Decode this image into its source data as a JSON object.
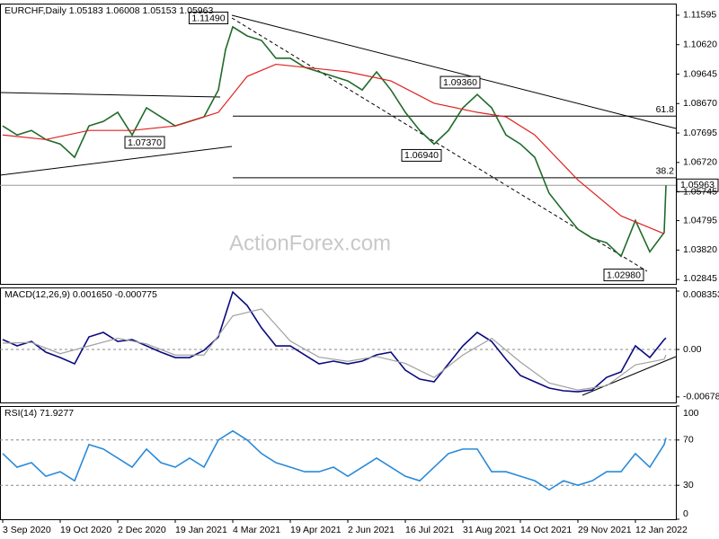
{
  "chart_data": [
    {
      "type": "line",
      "title": "EURCHF,Daily  1.05183 1.06008 1.05153 1.05963",
      "watermark": "ActionForex.com",
      "xlim": [
        -1.5,
        374.5
      ],
      "ylim": [
        1.027,
        1.1198
      ],
      "yticks": [
        1.11595,
        {
          "value": 1.1062,
          "label": "1.10620"
        },
        1.09645,
        {
          "value": 1.0867,
          "label": "1.08670"
        },
        1.07695,
        {
          "value": 1.0672,
          "label": "1.06720"
        },
        1.05745,
        1.04795,
        {
          "value": 1.0382,
          "label": "1.03820"
        },
        1.02845
      ],
      "last_marker": true,
      "series": [
        {
          "color": "#1f6b2a",
          "x": [
            0,
            8,
            16,
            24,
            32,
            40,
            48,
            56,
            64,
            72,
            80,
            88,
            96,
            104,
            112,
            120,
            124,
            128,
            136,
            144,
            152,
            160,
            168,
            176,
            184,
            192,
            200,
            208,
            216,
            224,
            232,
            240,
            248,
            256,
            264,
            272,
            280,
            288,
            296,
            304,
            312,
            320,
            328,
            336,
            344,
            352,
            360,
            368,
            369
          ],
          "values": [
            1.0793,
            1.0763,
            1.0778,
            1.0748,
            1.0733,
            1.0689,
            1.0793,
            1.0808,
            1.0838,
            1.0763,
            1.0853,
            1.0823,
            1.0793,
            1.0808,
            1.0823,
            1.0912,
            1.1046,
            1.1121,
            1.1091,
            1.1076,
            1.1017,
            1.1017,
            1.0987,
            1.0972,
            1.0957,
            1.0942,
            1.0912,
            1.0972,
            1.0912,
            1.0838,
            1.0778,
            1.0733,
            1.0778,
            1.0853,
            1.0897,
            1.0853,
            1.0763,
            1.0733,
            1.0689,
            1.057,
            1.051,
            1.0451,
            1.0421,
            1.0406,
            1.0361,
            1.048,
            1.0376,
            1.044,
            1.05963
          ]
        },
        {
          "color": "#e02020",
          "x": [
            0,
            24,
            48,
            72,
            96,
            120,
            136,
            152,
            168,
            192,
            216,
            240,
            264,
            280,
            296,
            320,
            344,
            368
          ],
          "values": [
            1.0763,
            1.0748,
            1.0778,
            1.0778,
            1.0793,
            1.0838,
            1.0957,
            1.0997,
            1.0987,
            1.0972,
            1.0942,
            1.0868,
            1.0838,
            1.0823,
            1.0763,
            1.0614,
            1.0495,
            1.0436
          ]
        }
      ],
      "levels": [
        {
          "label": "61.8",
          "value": 1.08253,
          "x": 128
        },
        {
          "label": "38.2",
          "value": 1.06213,
          "x": 128
        }
      ],
      "annotations": [
        {
          "label": "1.11490",
          "value": 1.1149,
          "x": 114.5
        },
        {
          "label": "1.07370",
          "value": 1.0737,
          "x": 79
        },
        {
          "label": "1.06940",
          "value": 1.0694,
          "x": 233
        },
        {
          "label": "1.09360",
          "value": 1.0936,
          "x": 254.5
        },
        {
          "label": "1.02980",
          "value": 1.0298,
          "x": 345.5
        }
      ]
    },
    {
      "type": "line",
      "title": "MACD(12,26,9) 0.001650 -0.000775",
      "xlim": [
        -1.5,
        374.5
      ],
      "ylim": [
        -0.00758,
        0.00887
      ],
      "yticks": [
        0.008353,
        {
          "value": 0,
          "label": "0.00"
        },
        -0.006788
      ],
      "levels": [
        0
      ],
      "series": [
        {
          "color": "#0a0a80",
          "x": [
            0,
            8,
            16,
            24,
            32,
            40,
            48,
            56,
            64,
            72,
            80,
            88,
            96,
            104,
            112,
            120,
            128,
            136,
            144,
            152,
            160,
            168,
            176,
            184,
            192,
            200,
            208,
            216,
            224,
            232,
            240,
            248,
            256,
            264,
            272,
            280,
            288,
            296,
            304,
            312,
            320,
            328,
            336,
            344,
            352,
            360,
            368,
            369
          ],
          "values": [
            0.001414,
            0.000514,
            0.001157,
            -0.000386,
            -0.001157,
            -0.002056,
            0.001799,
            0.002442,
            0.001157,
            0.001414,
            0.000514,
            -0.000386,
            -0.001157,
            -0.001157,
            -0.000129,
            0.001799,
            0.008224,
            0.006297,
            0.003084,
            0.000514,
            0.000514,
            -0.000771,
            -0.002056,
            -0.001671,
            -0.002056,
            -0.001671,
            -0.000771,
            -0.000386,
            -0.002956,
            -0.004241,
            -0.004626,
            -0.002056,
            0.000514,
            0.002442,
            0.001157,
            -0.001414,
            -0.003727,
            -0.004626,
            -0.005526,
            -0.005911,
            -0.00604,
            -0.005783,
            -0.003984,
            -0.003213,
            0.000514,
            -0.001157,
            0.001414,
            0.00165
          ]
        },
        {
          "color": "#a0a0a0",
          "x": [
            0,
            16,
            32,
            48,
            64,
            80,
            96,
            112,
            128,
            144,
            160,
            176,
            192,
            208,
            224,
            240,
            256,
            272,
            288,
            304,
            320,
            336,
            352,
            368,
            369
          ],
          "values": [
            0.0009,
            0.001,
            -0.0006,
            0.0005,
            0.0016,
            0.0008,
            -0.0008,
            -0.0008,
            0.0048,
            0.0058,
            0.0012,
            -0.0011,
            -0.0017,
            -0.001,
            -0.002,
            -0.004,
            -0.0008,
            0.0016,
            -0.0018,
            -0.0048,
            -0.0058,
            -0.0052,
            -0.0022,
            -0.0014,
            -0.000775
          ]
        }
      ]
    },
    {
      "type": "line",
      "title": "RSI(14) 71.9277",
      "xlim": [
        -1.5,
        374.5
      ],
      "ylim": [
        0,
        100
      ],
      "yticks": [
        100,
        70,
        30,
        0
      ],
      "levels": [
        70,
        30
      ],
      "series": [
        {
          "color": "#2a8ad8",
          "x": [
            0,
            8,
            16,
            24,
            32,
            40,
            48,
            56,
            64,
            72,
            80,
            88,
            96,
            104,
            112,
            120,
            128,
            136,
            144,
            152,
            160,
            168,
            176,
            184,
            192,
            200,
            208,
            216,
            224,
            232,
            240,
            248,
            256,
            264,
            272,
            280,
            288,
            296,
            304,
            312,
            320,
            328,
            336,
            344,
            352,
            360,
            368,
            369
          ],
          "values": [
            58,
            46,
            50,
            38,
            42,
            34,
            66,
            62,
            54,
            46,
            62,
            50,
            46,
            54,
            46,
            70,
            78,
            70,
            58,
            50,
            46,
            42,
            42,
            46,
            38,
            46,
            54,
            46,
            38,
            34,
            46,
            58,
            62,
            62,
            42,
            42,
            38,
            34,
            26,
            34,
            30,
            34,
            42,
            42,
            58,
            46,
            66,
            71.9277
          ]
        }
      ],
      "xticks": [
        {
          "value": 0,
          "label": "3 Sep 2020"
        },
        {
          "value": 32,
          "label": "19 Oct 2020"
        },
        {
          "value": 64,
          "label": "2 Dec 2020"
        },
        {
          "value": 96,
          "label": "19 Jan 2021"
        },
        {
          "value": 128,
          "label": "4 Mar 2021"
        },
        {
          "value": 160,
          "label": "19 Apr 2021"
        },
        {
          "value": 192,
          "label": "2 Jun 2021"
        },
        {
          "value": 224,
          "label": "16 Jul 2021"
        },
        {
          "value": 256,
          "label": "31 Aug 2021"
        },
        {
          "value": 288,
          "label": "14 Oct 2021"
        },
        {
          "value": 320,
          "label": "29 Nov 2021"
        },
        {
          "value": 352,
          "label": "12 Jan 2022"
        }
      ]
    }
  ]
}
